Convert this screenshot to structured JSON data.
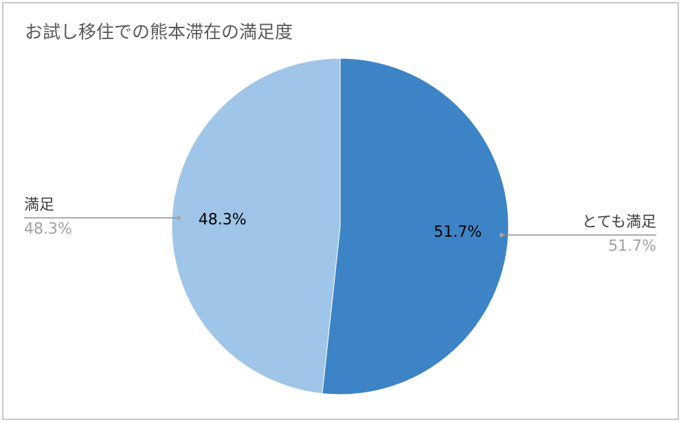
{
  "chart_data": {
    "type": "pie",
    "title": "お試し移住での熊本滞在の満足度",
    "categories": [
      "とても満足",
      "満足"
    ],
    "values": [
      51.7,
      48.3
    ],
    "value_labels": [
      "51.7%",
      "48.3%"
    ],
    "colors": [
      "#3d84c6",
      "#9fc5e8"
    ]
  }
}
